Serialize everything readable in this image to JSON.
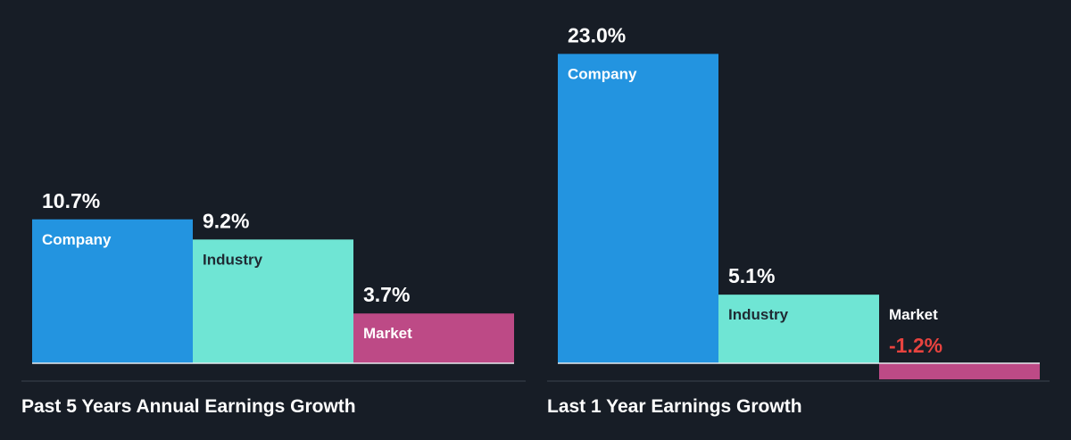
{
  "colors": {
    "background": "#171d26",
    "company": "#2394e0",
    "industry": "#6fe5d4",
    "market": "#bd4a86",
    "negative_text": "#e8433f",
    "text": "#ffffff"
  },
  "chart_data": [
    {
      "type": "bar",
      "title": "Past 5 Years Annual Earnings Growth",
      "categories": [
        "Company",
        "Industry",
        "Market"
      ],
      "values": [
        10.7,
        9.2,
        3.7
      ],
      "value_labels": [
        "10.7%",
        "9.2%",
        "3.7%"
      ],
      "unit": "%",
      "ylim": [
        -3.5,
        25
      ],
      "grid": false,
      "legend": "none"
    },
    {
      "type": "bar",
      "title": "Last 1 Year Earnings Growth",
      "categories": [
        "Company",
        "Industry",
        "Market"
      ],
      "values": [
        23.0,
        5.1,
        -1.2
      ],
      "value_labels": [
        "23.0%",
        "5.1%",
        "-1.2%"
      ],
      "unit": "%",
      "ylim": [
        -3.5,
        25
      ],
      "grid": false,
      "legend": "none"
    }
  ]
}
